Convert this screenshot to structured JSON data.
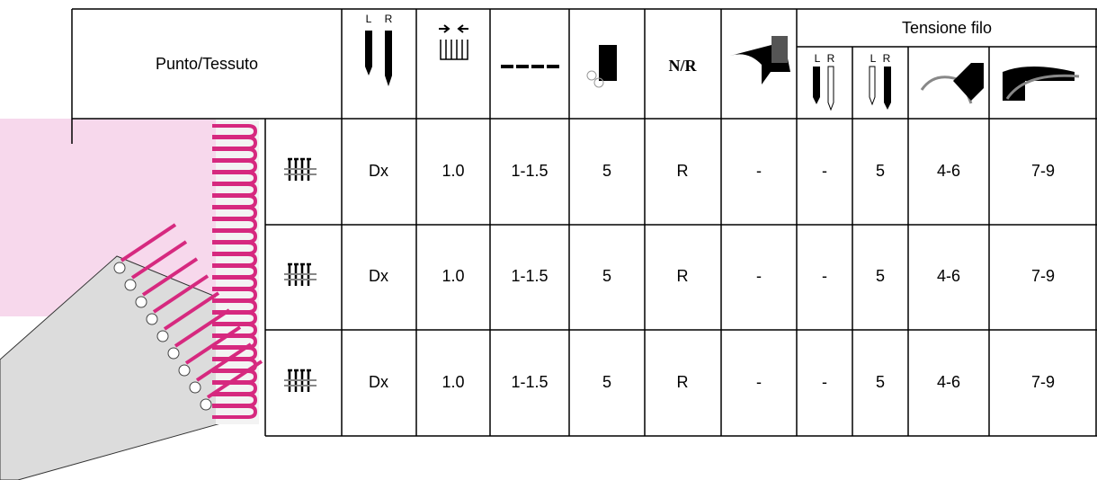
{
  "header": {
    "title": "Punto/Tessuto",
    "nr": "N/R",
    "tension": "Tensione filo",
    "left": "L",
    "right": "R"
  },
  "rows": [
    [
      "Dx",
      "1.0",
      "1-1.5",
      "5",
      "R",
      "-",
      "-",
      "5",
      "4-6",
      "7-9"
    ],
    [
      "Dx",
      "1.0",
      "1-1.5",
      "5",
      "R",
      "-",
      "-",
      "5",
      "4-6",
      "7-9"
    ],
    [
      "Dx",
      "1.0",
      "1-1.5",
      "5",
      "R",
      "-",
      "-",
      "5",
      "4-6",
      "7-9"
    ]
  ]
}
